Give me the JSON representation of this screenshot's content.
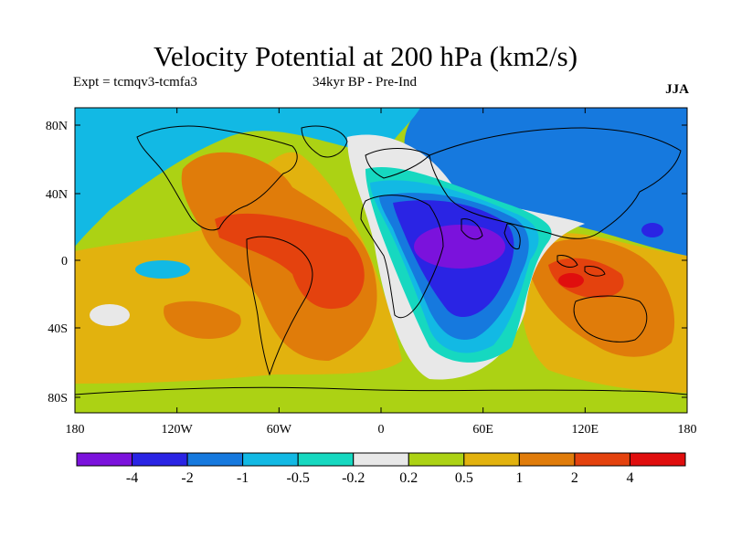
{
  "title": "Velocity Potential at 200 hPa (km2/s)",
  "experiment": "Expt = tcmqv3-tcmfa3",
  "period": "34kyr BP - Pre-Ind",
  "season": "JJA",
  "map": {
    "lat_labels": [
      "80N",
      "40N",
      "0",
      "40S",
      "80S"
    ],
    "lon_labels": [
      "180",
      "120W",
      "60W",
      "0",
      "60E",
      "120E",
      "180"
    ]
  },
  "colorbar": {
    "tick_labels": [
      "-4",
      "-2",
      "-1",
      "-0.5",
      "-0.2",
      "0.2",
      "0.5",
      "1",
      "2",
      "4"
    ],
    "colors": [
      "#7b12dc",
      "#2a24e4",
      "#1679de",
      "#12b9e4",
      "#16d8c0",
      "#e8e8e8",
      "#acd214",
      "#e2b20e",
      "#e07c0a",
      "#e4420e",
      "#e00e0e"
    ]
  }
}
